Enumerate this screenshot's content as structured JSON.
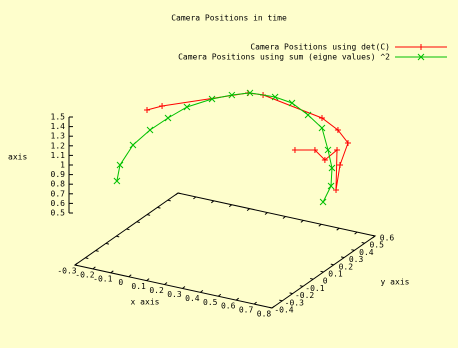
{
  "chart_data": {
    "type": "line3d",
    "title": "Camera Positions in time",
    "x_label": "x axis",
    "y_label": "y axis",
    "z_label": "axis",
    "xlim": [
      -0.3,
      0.8
    ],
    "ylim": [
      -0.4,
      0.6
    ],
    "zlim": [
      0.5,
      1.5
    ],
    "xticks": [
      -0.3,
      -0.2,
      -0.1,
      0,
      0.1,
      0.2,
      0.3,
      0.4,
      0.5,
      0.6,
      0.7,
      0.8
    ],
    "yticks": [
      -0.4,
      -0.3,
      -0.2,
      -0.1,
      0,
      0.1,
      0.2,
      0.3,
      0.4,
      0.5,
      0.6
    ],
    "zticks": [
      0.5,
      0.6,
      0.7,
      0.8,
      0.9,
      1,
      1.1,
      1.2,
      1.3,
      1.4,
      1.5
    ],
    "legend": "top-right",
    "series": [
      {
        "name": "Camera Positions using det(C)",
        "color": "#ff0000",
        "marker": "plus",
        "x": [
          -0.182,
          -0.125,
          0.214,
          0.29,
          0.611,
          0.711,
          0.786,
          0.769,
          0.729,
          0.753,
          0.733,
          0.659,
          0.574
        ],
        "y": [
          0.094,
          0.141,
          0.386,
          0.4,
          0.414,
          0.395,
          0.362,
          0.314,
          0.345,
          0.313,
          0.23,
          0.262,
          0.216
        ],
        "z": [
          1.25,
          1.28,
          1.37,
          1.37,
          1.25,
          1.18,
          1.1,
          0.9,
          0.6,
          1.05,
          1.0,
          1.05,
          1.05
        ]
      },
      {
        "name": "Camera Positions using sum (eigne values) ^2",
        "color": "#00c000",
        "marker": "cross",
        "x": [
          -0.112,
          -0.138,
          -0.146,
          -0.106,
          -0.062,
          -0.013,
          0.074,
          0.152,
          0.222,
          0.348,
          0.439,
          0.551,
          0.654,
          0.755,
          0.765,
          0.742,
          0.747
        ],
        "y": [
          -0.32,
          -0.245,
          -0.105,
          -0.009,
          0.089,
          0.188,
          0.28,
          0.337,
          0.391,
          0.416,
          0.422,
          0.383,
          0.339,
          0.222,
          0.243,
          0.274,
          0.188
        ],
        "z": [
          0.85,
          0.95,
          1.05,
          1.15,
          1.22,
          1.28,
          1.33,
          1.36,
          1.37,
          1.36,
          1.33,
          1.28,
          1.22,
          1.12,
          0.92,
          0.7,
          0.6
        ]
      }
    ]
  }
}
